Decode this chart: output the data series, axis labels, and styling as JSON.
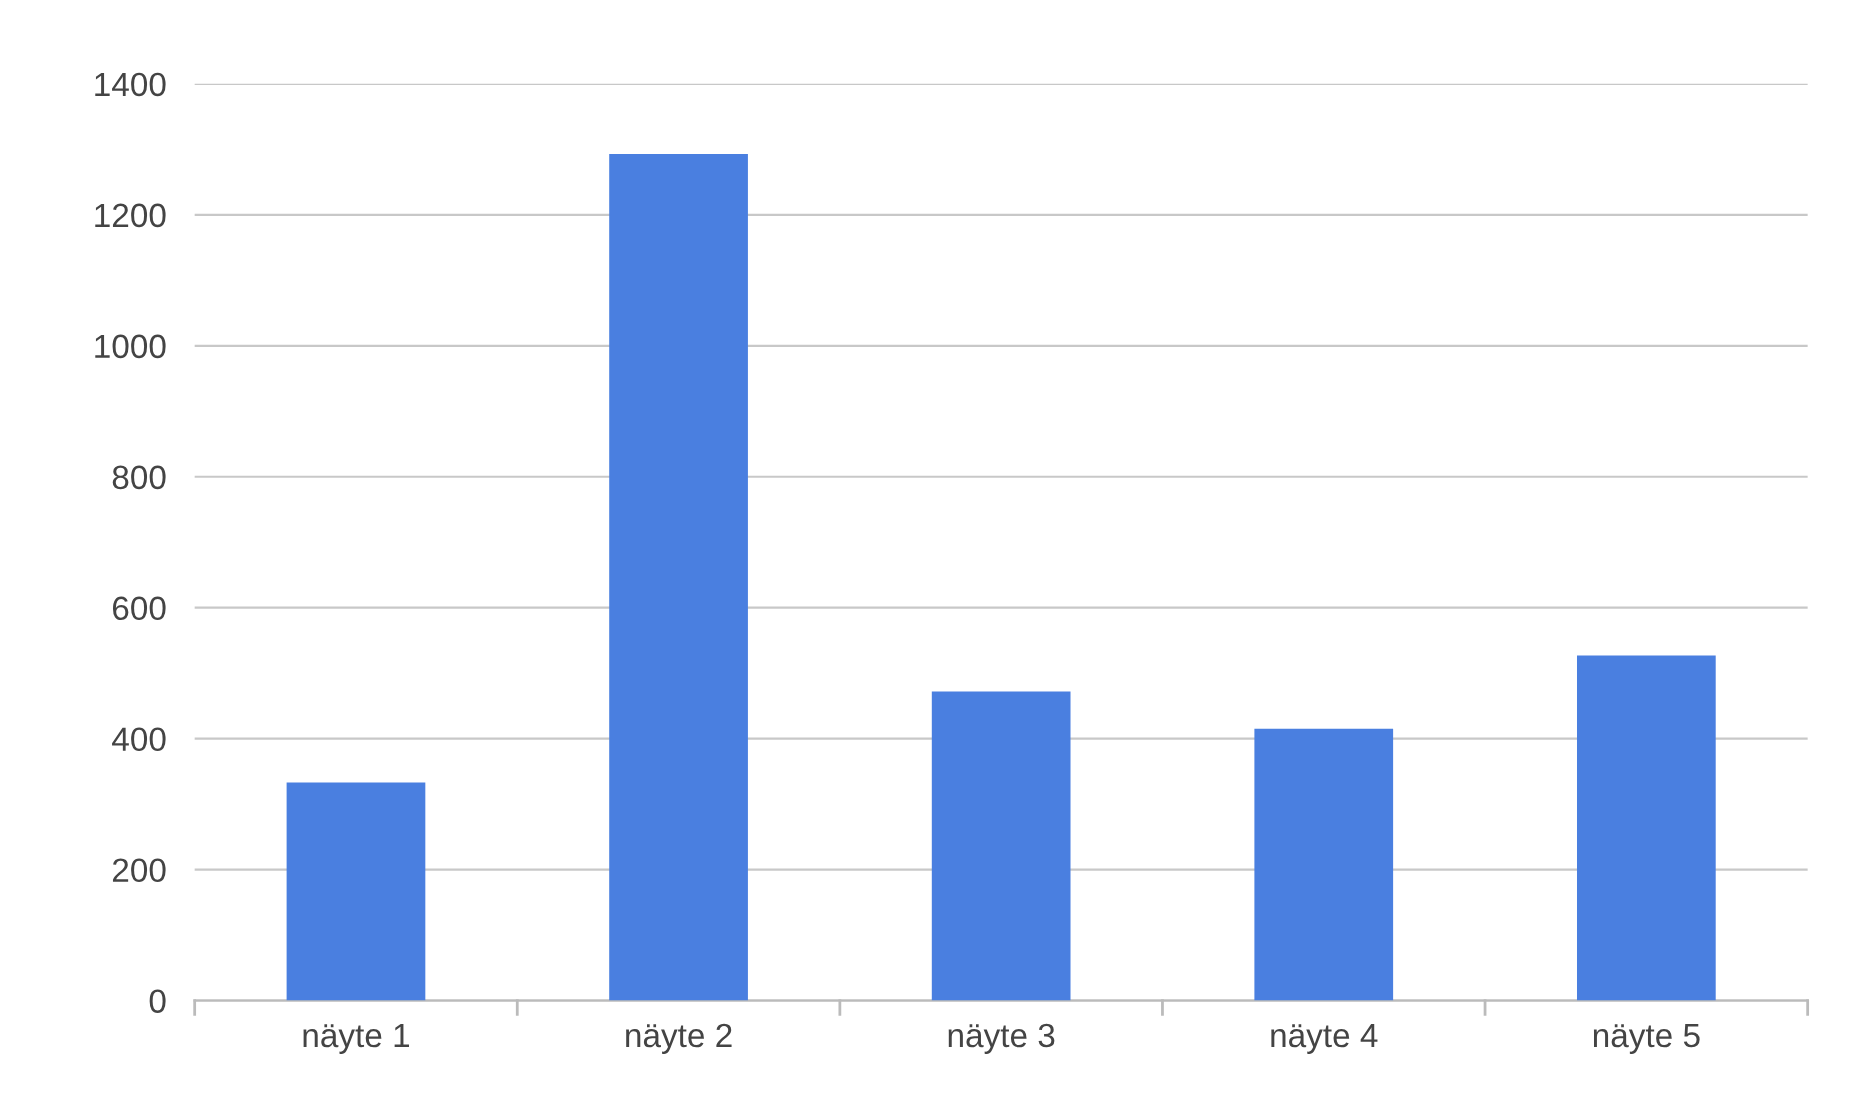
{
  "chart_data": {
    "type": "bar",
    "categories": [
      "näyte 1",
      "näyte 2",
      "näyte 3",
      "näyte 4",
      "näyte 5"
    ],
    "values": [
      333,
      1293,
      472,
      415,
      527
    ],
    "color": "#4a7fe0",
    "ylim": [
      0,
      1400
    ],
    "yticks": [
      0,
      200,
      400,
      600,
      800,
      1000,
      1200,
      1400
    ],
    "grid": "y",
    "legend": false
  }
}
